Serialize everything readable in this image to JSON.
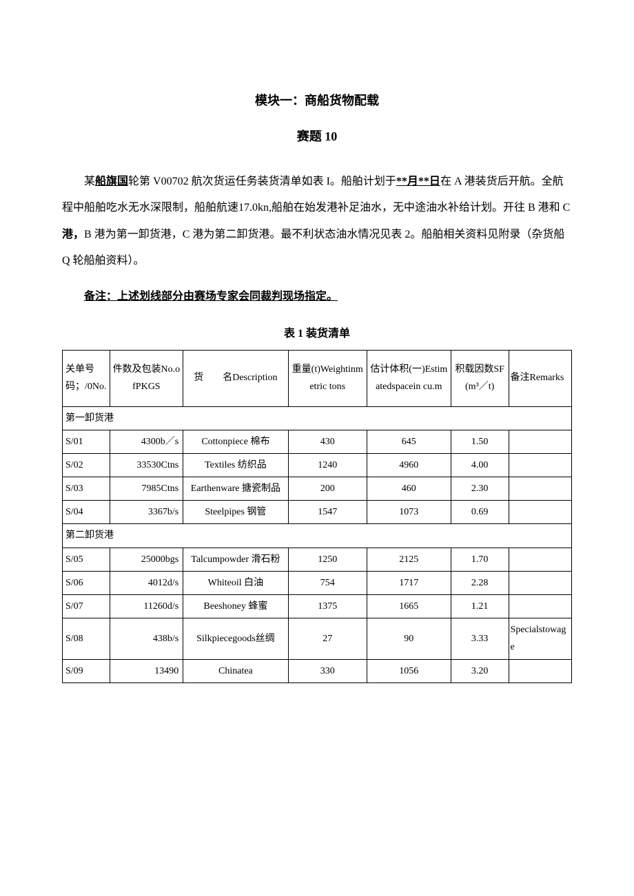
{
  "document": {
    "title": "模块一：商船货物配载",
    "subtitle": "赛题 10",
    "paragraph_parts": {
      "p1_prefix": "某",
      "p1_underline1": "船旗国",
      "p1_mid1": "轮第 V00702 航次货运任务装货清单如表 I。船舶计划于",
      "p1_underline2": "**月**日",
      "p1_mid2": "在 A 港装货后开航。全航程中船舶吃水无水深限制，船舶航速17.0kn,船舶在始发港补足油水，无中途油水补给计划。开往 B 港和 C ",
      "p1_bold1": "港，",
      "p1_mid3": "B 港为第一卸货港，C 港为第二卸货港。最不利状态油水情况见表 2。船舶相关资料见附录（杂货船 Q 轮船舶资料）。"
    },
    "note": "备注：上述划线部分由赛场专家会同裁判现场指定。",
    "table_caption": "表 1 装货清单",
    "table": {
      "headers": {
        "c0": "关单号码；/0No.",
        "c1": "件数及包装No.ofPKGS",
        "c2": "货　　名Description",
        "c3": "重量(t)Weightinmetric tons",
        "c4": "估计体积(一)Estimatedspacein cu.m",
        "c5": "积载因数SF(m³／t)",
        "c6": "备注Remarks"
      },
      "sections": [
        {
          "label": "第一卸货港",
          "rows": [
            {
              "c0": "S/01",
              "c1": "4300b／s",
              "c2": "Cottonpiece 棉布",
              "c3": "430",
              "c4": "645",
              "c5": "1.50",
              "c6": ""
            },
            {
              "c0": "S/02",
              "c1": "33530Ctns",
              "c2": "Textiles 纺织品",
              "c3": "1240",
              "c4": "4960",
              "c5": "4.00",
              "c6": ""
            },
            {
              "c0": "S/03",
              "c1": "7985Ctns",
              "c2": "Earthenware 搪瓷制品",
              "c3": "200",
              "c4": "460",
              "c5": "2.30",
              "c6": ""
            },
            {
              "c0": "S/04",
              "c1": "3367b/s",
              "c2": "Steelpipes 钢管",
              "c3": "1547",
              "c4": "1073",
              "c5": "0.69",
              "c6": ""
            }
          ]
        },
        {
          "label": "第二卸货港",
          "rows": [
            {
              "c0": "S/05",
              "c1": "25000bgs",
              "c2": "Talcumpowder 滑石粉",
              "c3": "1250",
              "c4": "2125",
              "c5": "1.70",
              "c6": ""
            },
            {
              "c0": "S/06",
              "c1": "4012d/s",
              "c2": "Whiteoil 白油",
              "c3": "754",
              "c4": "1717",
              "c5": "2.28",
              "c6": ""
            },
            {
              "c0": "S/07",
              "c1": "11260d/s",
              "c2": "Beeshoney 蜂蜜",
              "c3": "1375",
              "c4": "1665",
              "c5": "1.21",
              "c6": ""
            },
            {
              "c0": "S/08",
              "c1": "438b/s",
              "c2": "Silkpiecegoods丝绸",
              "c3": "27",
              "c4": "90",
              "c5": "3.33",
              "c6": "Specialstowage"
            },
            {
              "c0": "S/09",
              "c1": "13490",
              "c2": "Chinatea",
              "c3": "330",
              "c4": "1056",
              "c5": "3.20",
              "c6": ""
            }
          ]
        }
      ]
    }
  }
}
